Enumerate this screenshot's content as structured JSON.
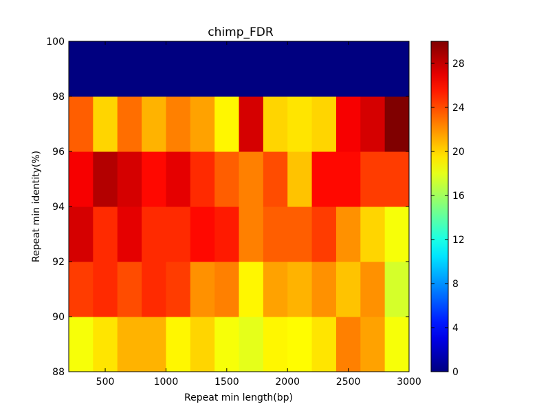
{
  "chart_data": {
    "type": "heatmap",
    "title": "chimp_FDR",
    "xlabel": "Repeat min length(bp)",
    "ylabel": "Repeat min identity(%)",
    "x_edges": [
      200,
      400,
      600,
      800,
      1000,
      1200,
      1400,
      1600,
      1800,
      2000,
      2200,
      2400,
      2600,
      2800,
      3000
    ],
    "y_edges": [
      88,
      90,
      92,
      94,
      96,
      98,
      100
    ],
    "xlim": [
      200,
      3000
    ],
    "ylim": [
      88,
      100
    ],
    "x_ticks": [
      "500",
      "1000",
      "1500",
      "2000",
      "2500",
      "3000"
    ],
    "y_ticks": [
      "88",
      "90",
      "92",
      "94",
      "96",
      "98",
      "100"
    ],
    "colorbar": {
      "colormap": "jet",
      "vmin": 0,
      "vmax": 30,
      "ticks": [
        "0",
        "4",
        "8",
        "12",
        "16",
        "20",
        "24",
        "28"
      ]
    },
    "values": [
      [
        18.5,
        19.5,
        21.0,
        21.0,
        19.0,
        20.0,
        18.5,
        18.0,
        19.0,
        18.8,
        19.5,
        22.5,
        21.5,
        18.5
      ],
      [
        24.5,
        25.0,
        24.0,
        25.0,
        24.5,
        22.0,
        22.5,
        19.0,
        21.5,
        21.0,
        22.0,
        20.5,
        22.0,
        17.5
      ],
      [
        27.5,
        25.0,
        27.0,
        25.0,
        25.0,
        26.0,
        25.5,
        22.5,
        23.5,
        23.5,
        24.5,
        22.0,
        20.0,
        18.5
      ],
      [
        26.5,
        28.5,
        27.5,
        26.0,
        27.0,
        25.0,
        23.5,
        22.5,
        24.0,
        20.5,
        26.0,
        26.0,
        24.5,
        24.5
      ],
      [
        23.5,
        20.0,
        23.0,
        21.0,
        22.5,
        21.5,
        19.0,
        27.5,
        20.0,
        19.5,
        20.0,
        26.5,
        27.5,
        30.0
      ],
      [
        0,
        0,
        0,
        0,
        0,
        0,
        0,
        0,
        0,
        0,
        0,
        0,
        0,
        0
      ]
    ]
  }
}
